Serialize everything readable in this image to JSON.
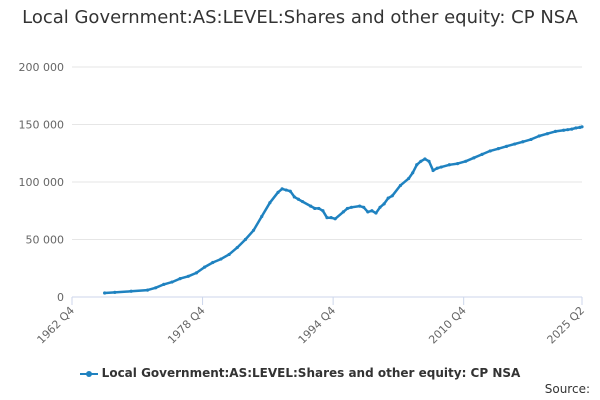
{
  "title": "Local Government:AS:LEVEL:Shares and other equity: CP NSA",
  "source_label": "Source:",
  "chart_data": {
    "type": "line",
    "title": "Local Government:AS:LEVEL:Shares and other equity: CP NSA",
    "xlabel": "",
    "ylabel": "",
    "x_tick_labels": [
      "1962 Q4",
      "1978 Q4",
      "1994 Q4",
      "2010 Q4",
      "2025 Q2"
    ],
    "x_ticks_year": [
      1962.75,
      1978.75,
      1994.75,
      2010.75,
      2025.25
    ],
    "y_ticks": [
      0,
      50000,
      100000,
      150000,
      200000
    ],
    "y_tick_labels": [
      "0",
      "50 000",
      "100 000",
      "150 000",
      "200 000"
    ],
    "xlim": [
      1962.75,
      2025.25
    ],
    "ylim": [
      0,
      200000
    ],
    "grid": true,
    "legend_position": "bottom",
    "color": "#1f82c0",
    "series": [
      {
        "name": "Local Government:AS:LEVEL:Shares and other equity: CP NSA",
        "x": [
          1966.75,
          1968,
          1970,
          1972,
          1973,
          1974,
          1975,
          1976,
          1977,
          1978,
          1979,
          1980,
          1981,
          1982,
          1983,
          1984,
          1985,
          1986,
          1987,
          1988,
          1988.5,
          1989,
          1989.5,
          1990,
          1990.5,
          1991,
          1992,
          1992.5,
          1993,
          1993.5,
          1994,
          1994.5,
          1995,
          1996,
          1996.5,
          1997,
          1998,
          1998.5,
          1999,
          1999.5,
          2000,
          2000.5,
          2001,
          2001.5,
          2002,
          2003,
          2004,
          2004.5,
          2005,
          2005.5,
          2006,
          2006.5,
          2007,
          2007.5,
          2008,
          2009,
          2010,
          2011,
          2012,
          2013,
          2014,
          2015,
          2016,
          2017,
          2018,
          2019,
          2020,
          2021,
          2022,
          2023,
          2023.5,
          2024,
          2024.5,
          2025,
          2025.25
        ],
        "y": [
          3500,
          4000,
          5000,
          6000,
          8000,
          11000,
          13000,
          16000,
          18000,
          21000,
          26000,
          30000,
          33000,
          37000,
          43000,
          50000,
          58000,
          70000,
          82000,
          91000,
          94000,
          93000,
          92000,
          87000,
          85000,
          83000,
          79000,
          77000,
          77000,
          75000,
          69000,
          69000,
          68000,
          74000,
          77000,
          78000,
          79000,
          78000,
          74000,
          75000,
          73000,
          78000,
          81000,
          86000,
          88000,
          97000,
          103000,
          108000,
          115000,
          118000,
          120000,
          118000,
          110000,
          112000,
          113000,
          115000,
          116000,
          118000,
          121000,
          124000,
          127000,
          129000,
          131000,
          133000,
          135000,
          137000,
          140000,
          142000,
          144000,
          145000,
          145500,
          146000,
          147000,
          147500,
          148000
        ]
      }
    ]
  }
}
